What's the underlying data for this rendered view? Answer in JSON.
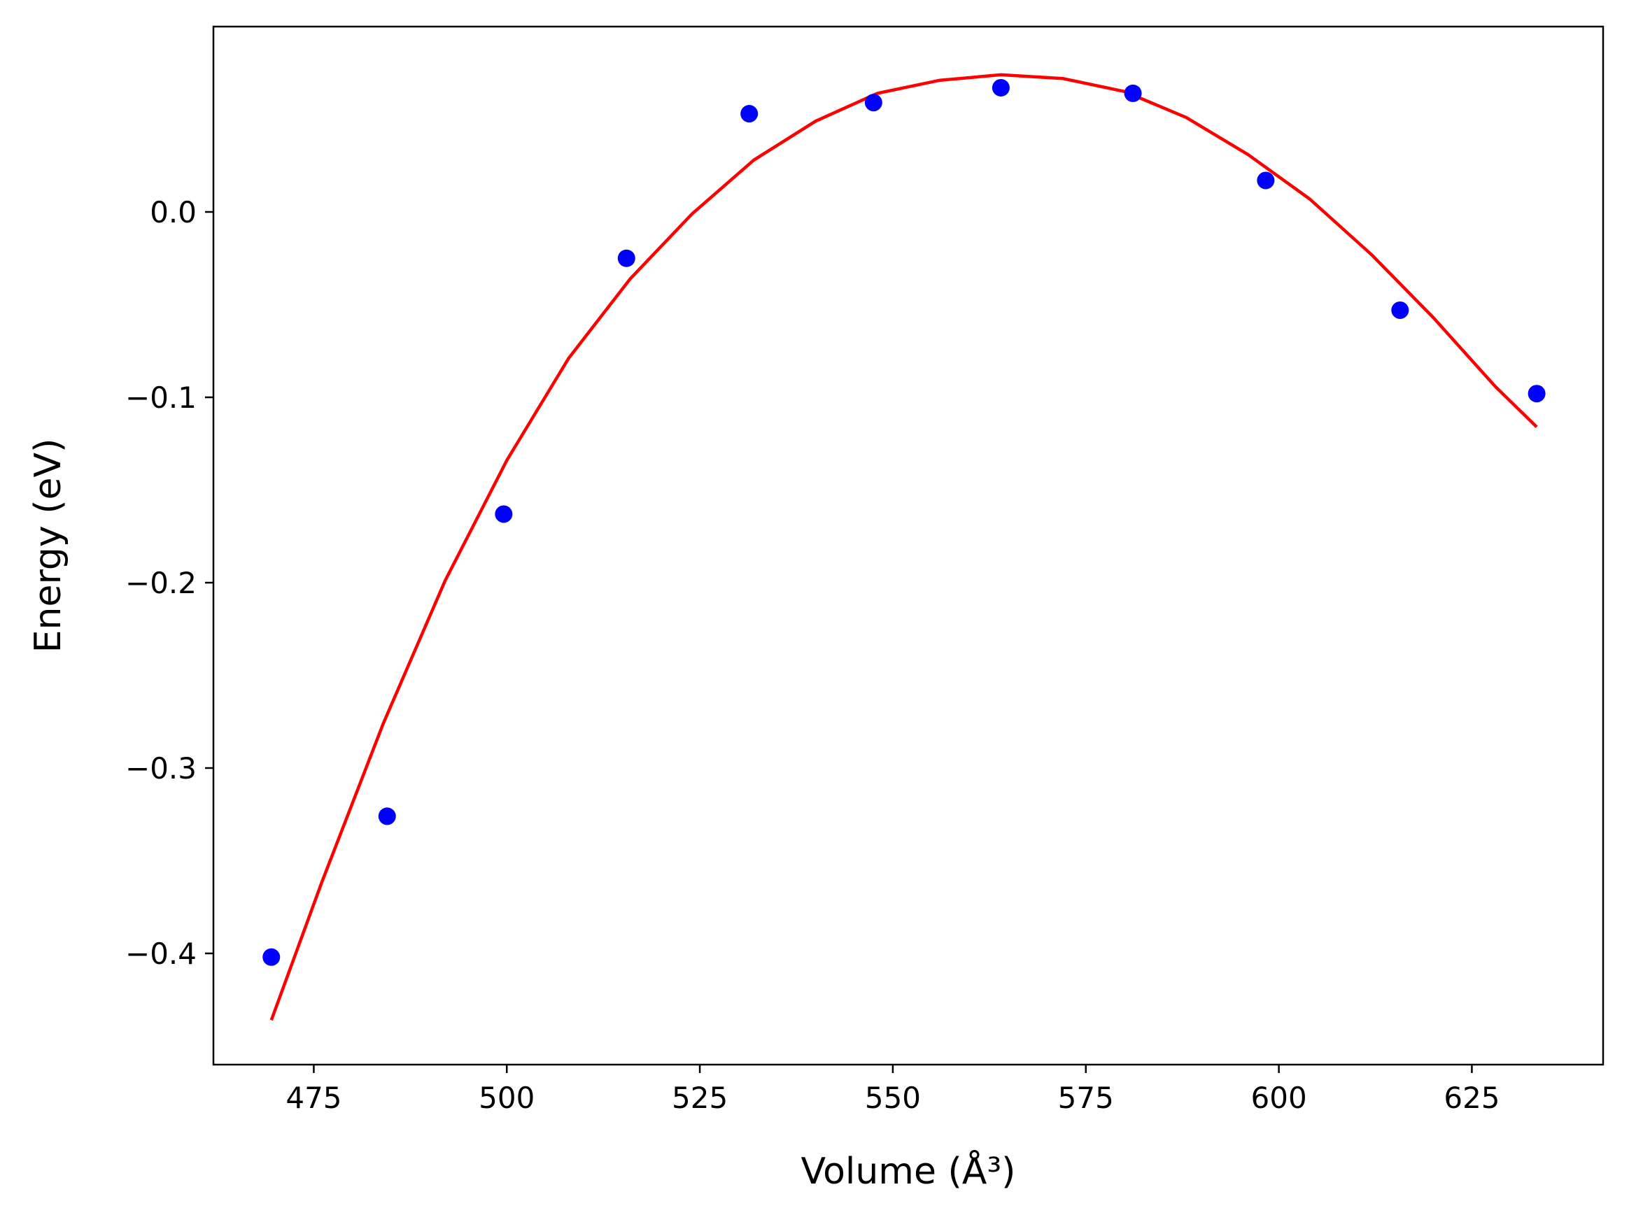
{
  "chart_data": {
    "type": "scatter",
    "xlabel": "Volume (Å³)",
    "ylabel": "Energy (eV)",
    "xlim": [
      462,
      642
    ],
    "ylim": [
      -0.46,
      0.1
    ],
    "xticks": [
      475,
      500,
      525,
      550,
      575,
      600,
      625
    ],
    "yticks": [
      -0.4,
      -0.3,
      -0.2,
      -0.1,
      0.0
    ],
    "xtick_labels": [
      "475",
      "500",
      "525",
      "550",
      "575",
      "600",
      "625"
    ],
    "ytick_labels": [
      "−0.4",
      "−0.3",
      "−0.2",
      "−0.1",
      "0.0"
    ],
    "grid": false,
    "legend": "none",
    "series": [
      {
        "kind": "points",
        "color": "#0000ff",
        "x": [
          469.5,
          484.5,
          499.6,
          515.5,
          531.4,
          547.5,
          564.0,
          581.1,
          598.3,
          615.7,
          633.4
        ],
        "y": [
          -0.402,
          -0.326,
          -0.163,
          -0.025,
          0.053,
          0.059,
          0.067,
          0.064,
          0.017,
          -0.053,
          -0.098
        ]
      },
      {
        "kind": "fit-line",
        "color": "#ff0000",
        "x": [
          469.5,
          476.0,
          484.0,
          492.0,
          500.0,
          508.0,
          516.0,
          524.0,
          532.0,
          540.0,
          548.0,
          556.0,
          564.0,
          572.0,
          580.0,
          588.0,
          596.0,
          604.0,
          612.0,
          620.0,
          628.0,
          633.4
        ],
        "y": [
          -0.436,
          -0.362,
          -0.276,
          -0.199,
          -0.134,
          -0.079,
          -0.036,
          -0.001,
          0.028,
          0.049,
          0.064,
          0.071,
          0.074,
          0.072,
          0.065,
          0.051,
          0.031,
          0.007,
          -0.023,
          -0.057,
          -0.094,
          -0.116
        ]
      }
    ]
  }
}
